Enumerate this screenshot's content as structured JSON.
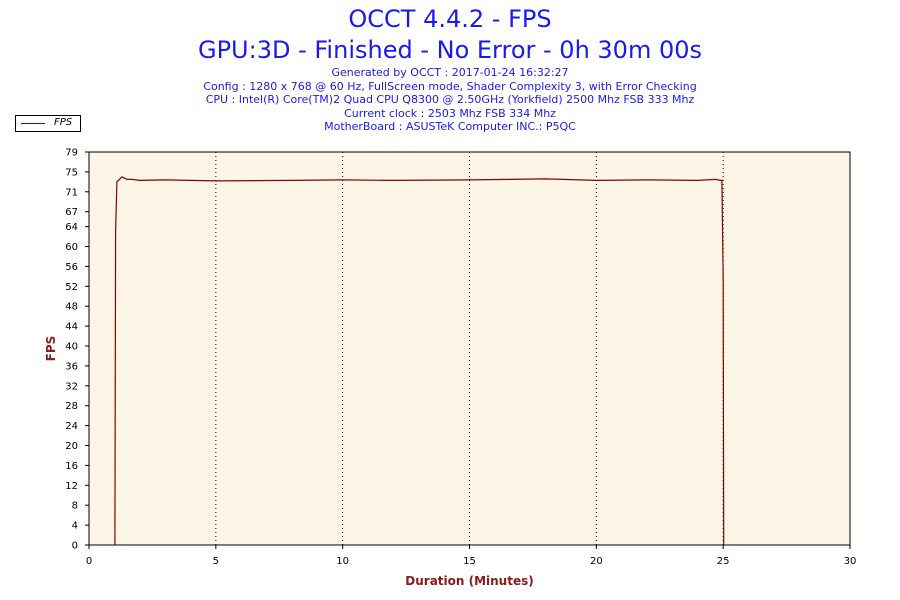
{
  "header": {
    "title": "OCCT 4.4.2 - FPS",
    "subtitle": "GPU:3D - Finished - No Error - 0h 30m 00s",
    "info_lines": [
      "Generated by OCCT : 2017-01-24 16:32:27",
      "Config : 1280 x 768 @ 60 Hz, FullScreen mode, Shader Complexity 3, with Error Checking",
      "CPU : Intel(R) Core(TM)2 Quad CPU Q8300 @ 2.50GHz (Yorkfield) 2500 Mhz FSB 333 Mhz",
      "Current clock : 2503 Mhz FSB 334 Mhz",
      "MotherBoard : ASUSTeK Computer INC.: P5QC"
    ]
  },
  "legend": {
    "label": "FPS",
    "placement": "top-left"
  },
  "colors": {
    "series": "#8b0000",
    "plot_bg": "#fdf5e6",
    "title": "#1a1aee",
    "axis_title": "#8b1a1a"
  },
  "chart_data": {
    "type": "line",
    "xlabel": "Duration (Minutes)",
    "ylabel": "FPS",
    "xlim": [
      0,
      30
    ],
    "ylim": [
      0,
      79
    ],
    "x_ticks": [
      0,
      5,
      10,
      15,
      20,
      25,
      30
    ],
    "y_ticks": [
      0,
      4,
      8,
      12,
      16,
      20,
      24,
      28,
      32,
      36,
      40,
      44,
      48,
      52,
      56,
      60,
      64,
      67,
      71,
      75,
      79
    ],
    "grid": "vertical-dotted",
    "series": [
      {
        "name": "FPS",
        "x": [
          1.02,
          1.05,
          1.1,
          1.2,
          1.3,
          1.5,
          1.7,
          2.0,
          3.0,
          5.0,
          8.0,
          10.0,
          12.0,
          15.0,
          18.0,
          20.0,
          22.0,
          24.0,
          24.7,
          24.9,
          24.95,
          25.0,
          25.02
        ],
        "y": [
          0,
          63,
          73,
          73.5,
          74,
          73.5,
          73.5,
          73.3,
          73.4,
          73.2,
          73.3,
          73.4,
          73.3,
          73.4,
          73.6,
          73.3,
          73.4,
          73.3,
          73.5,
          73.3,
          73.3,
          53,
          0
        ]
      }
    ]
  }
}
